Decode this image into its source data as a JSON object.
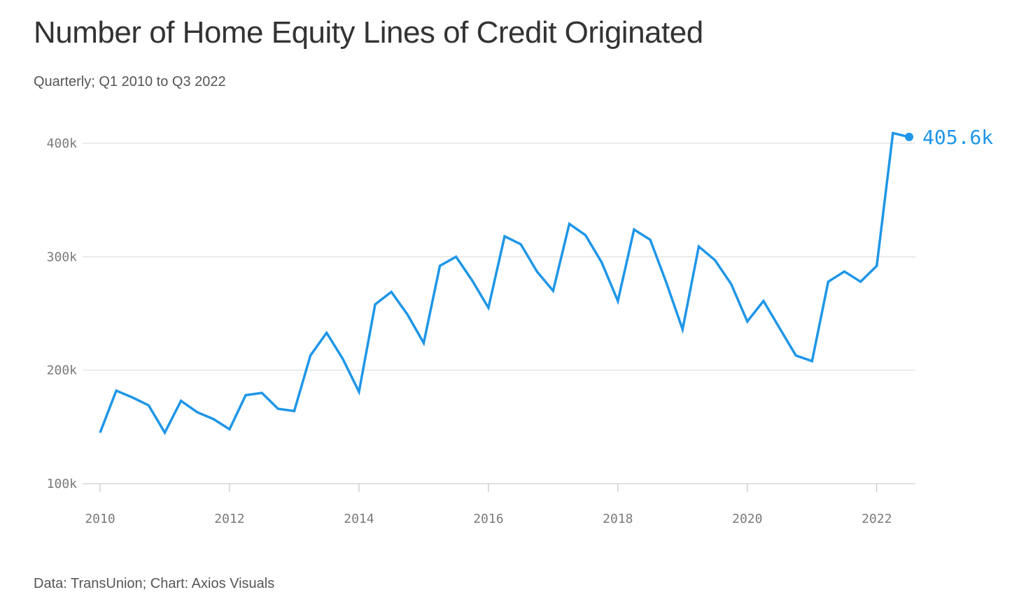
{
  "title": "Number of Home Equity Lines of Credit Originated",
  "subtitle": "Quarterly; Q1 2010 to Q3 2022",
  "source": "Data: TransUnion; Chart: Axios Visuals",
  "colors": {
    "line": "#1E96E8",
    "grid": "#d9d9d9",
    "axis_text": "#7a7a7a",
    "title": "#333333"
  },
  "chart_data": {
    "type": "line",
    "title": "Number of Home Equity Lines of Credit Originated",
    "subtitle": "Quarterly; Q1 2010 to Q3 2022",
    "xlabel": "",
    "ylabel": "",
    "x_ticks": [
      "2010",
      "2012",
      "2014",
      "2016",
      "2018",
      "2020",
      "2022"
    ],
    "y_ticks": [
      "100k",
      "200k",
      "300k",
      "400k"
    ],
    "ylim": [
      100000,
      410000
    ],
    "grid": true,
    "end_label": "405.6k",
    "series": [
      {
        "x": [
          "Q1 2010",
          "Q2 2010",
          "Q3 2010",
          "Q4 2010",
          "Q1 2011",
          "Q2 2011",
          "Q3 2011",
          "Q4 2011",
          "Q1 2012",
          "Q2 2012",
          "Q3 2012",
          "Q4 2012",
          "Q1 2013",
          "Q2 2013",
          "Q3 2013",
          "Q4 2013",
          "Q1 2014",
          "Q2 2014",
          "Q3 2014",
          "Q4 2014",
          "Q1 2015",
          "Q2 2015",
          "Q3 2015",
          "Q4 2015",
          "Q1 2016",
          "Q2 2016",
          "Q3 2016",
          "Q4 2016",
          "Q1 2017",
          "Q2 2017",
          "Q3 2017",
          "Q4 2017",
          "Q1 2018",
          "Q2 2018",
          "Q3 2018",
          "Q4 2018",
          "Q1 2019",
          "Q2 2019",
          "Q3 2019",
          "Q4 2019",
          "Q1 2020",
          "Q2 2020",
          "Q3 2020",
          "Q4 2020",
          "Q1 2021",
          "Q2 2021",
          "Q3 2021",
          "Q4 2021",
          "Q1 2022",
          "Q2 2022",
          "Q3 2022"
        ],
        "values": [
          145000,
          182000,
          176000,
          169000,
          145000,
          173000,
          163000,
          157000,
          148000,
          178000,
          180000,
          166000,
          164000,
          213000,
          233000,
          210000,
          181000,
          258000,
          269000,
          249000,
          224000,
          292000,
          300000,
          279000,
          255000,
          318000,
          311000,
          287000,
          270000,
          329000,
          319000,
          295000,
          261000,
          324000,
          315000,
          277000,
          236000,
          309000,
          297000,
          276000,
          243000,
          261000,
          237000,
          213000,
          208000,
          278000,
          287000,
          278000,
          292000,
          409000,
          405600
        ]
      }
    ]
  }
}
